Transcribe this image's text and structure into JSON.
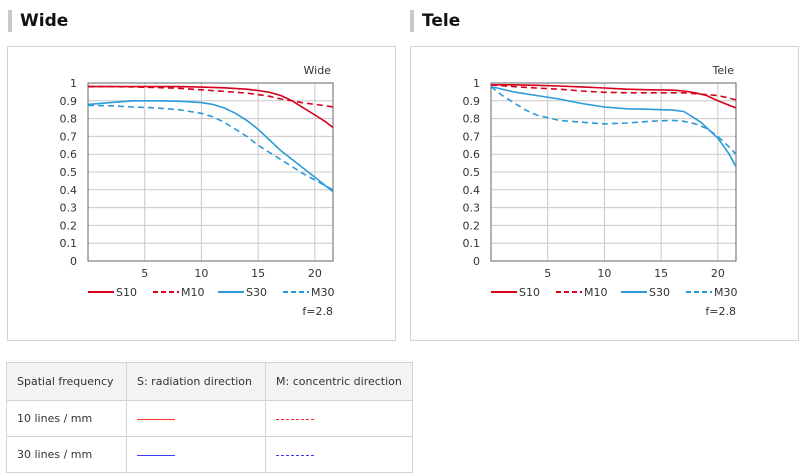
{
  "sections": [
    {
      "title": "Wide"
    },
    {
      "title": "Tele"
    }
  ],
  "colors": {
    "red": "#d7001a",
    "blue": "#2b9ad8",
    "grid": "#c8c8c8",
    "axis": "#666666"
  },
  "chart_data": [
    {
      "type": "line",
      "title": "Wide",
      "note": "f=2.8",
      "xlim": [
        0,
        21.6
      ],
      "ylim": [
        0,
        1
      ],
      "xticks": [
        "5",
        "10",
        "15",
        "20"
      ],
      "xtick_values": [
        5,
        10,
        15,
        20
      ],
      "yticks": [
        "0",
        "0.1",
        "0.2",
        "0.3",
        "0.4",
        "0.5",
        "0.6",
        "0.7",
        "0.8",
        "0.9",
        "1"
      ],
      "grid": true,
      "legend_position": "bottom",
      "series": [
        {
          "name": "S10",
          "color": "#d7001a",
          "dash": false,
          "x": [
            0,
            2,
            4,
            6,
            8,
            10,
            12,
            14,
            15,
            16,
            17,
            18,
            19,
            20,
            21,
            21.6
          ],
          "y": [
            0.98,
            0.98,
            0.98,
            0.98,
            0.98,
            0.977,
            0.973,
            0.965,
            0.958,
            0.948,
            0.93,
            0.9,
            0.86,
            0.82,
            0.78,
            0.75
          ]
        },
        {
          "name": "M10",
          "color": "#d7001a",
          "dash": true,
          "x": [
            0,
            2,
            4,
            6,
            8,
            10,
            12,
            14,
            15,
            16,
            17,
            18,
            19,
            20,
            21,
            21.6
          ],
          "y": [
            0.98,
            0.98,
            0.978,
            0.975,
            0.97,
            0.962,
            0.953,
            0.943,
            0.935,
            0.925,
            0.91,
            0.9,
            0.888,
            0.88,
            0.872,
            0.865
          ]
        },
        {
          "name": "S30",
          "color": "#2b9ad8",
          "dash": false,
          "x": [
            0,
            2,
            4,
            6,
            8,
            10,
            11,
            12,
            13,
            14,
            15,
            16,
            17,
            18,
            19,
            20,
            21,
            21.6
          ],
          "y": [
            0.88,
            0.89,
            0.9,
            0.9,
            0.898,
            0.89,
            0.88,
            0.86,
            0.83,
            0.79,
            0.74,
            0.68,
            0.62,
            0.57,
            0.52,
            0.47,
            0.42,
            0.39
          ]
        },
        {
          "name": "M30",
          "color": "#2b9ad8",
          "dash": true,
          "x": [
            0,
            2,
            4,
            6,
            8,
            10,
            11,
            12,
            13,
            14,
            15,
            16,
            17,
            18,
            19,
            20,
            21,
            21.6
          ],
          "y": [
            0.875,
            0.872,
            0.865,
            0.86,
            0.85,
            0.83,
            0.81,
            0.78,
            0.74,
            0.7,
            0.65,
            0.61,
            0.57,
            0.53,
            0.49,
            0.455,
            0.42,
            0.4
          ]
        }
      ]
    },
    {
      "type": "line",
      "title": "Tele",
      "note": "f=2.8",
      "xlim": [
        0,
        21.6
      ],
      "ylim": [
        0,
        1
      ],
      "xticks": [
        "5",
        "10",
        "15",
        "20"
      ],
      "xtick_values": [
        5,
        10,
        15,
        20
      ],
      "yticks": [
        "0",
        "0.1",
        "0.2",
        "0.3",
        "0.4",
        "0.5",
        "0.6",
        "0.7",
        "0.8",
        "0.9",
        "1"
      ],
      "grid": true,
      "legend_position": "bottom",
      "series": [
        {
          "name": "S10",
          "color": "#d7001a",
          "dash": false,
          "x": [
            0,
            2,
            4,
            6,
            8,
            10,
            12,
            14,
            16,
            17,
            18,
            19,
            20,
            21,
            21.6
          ],
          "y": [
            0.99,
            0.99,
            0.987,
            0.983,
            0.978,
            0.972,
            0.965,
            0.962,
            0.96,
            0.955,
            0.945,
            0.93,
            0.9,
            0.875,
            0.86
          ]
        },
        {
          "name": "M10",
          "color": "#d7001a",
          "dash": true,
          "x": [
            0,
            2,
            4,
            6,
            8,
            10,
            12,
            14,
            16,
            17,
            18,
            19,
            20,
            21,
            21.6
          ],
          "y": [
            0.99,
            0.98,
            0.972,
            0.965,
            0.955,
            0.948,
            0.945,
            0.945,
            0.945,
            0.945,
            0.94,
            0.935,
            0.93,
            0.915,
            0.905
          ]
        },
        {
          "name": "S30",
          "color": "#2b9ad8",
          "dash": false,
          "x": [
            0,
            2,
            4,
            6,
            8,
            10,
            12,
            14,
            15,
            16,
            17,
            17.5,
            18,
            18.5,
            19,
            20,
            21,
            21.6
          ],
          "y": [
            0.98,
            0.95,
            0.93,
            0.91,
            0.885,
            0.865,
            0.855,
            0.852,
            0.85,
            0.848,
            0.84,
            0.82,
            0.8,
            0.78,
            0.75,
            0.69,
            0.6,
            0.53
          ]
        },
        {
          "name": "M30",
          "color": "#2b9ad8",
          "dash": true,
          "x": [
            0,
            1,
            2,
            3,
            4,
            6,
            8,
            10,
            12,
            14,
            16,
            17,
            18,
            19,
            20,
            21,
            21.6
          ],
          "y": [
            0.98,
            0.93,
            0.89,
            0.85,
            0.82,
            0.79,
            0.78,
            0.77,
            0.775,
            0.785,
            0.79,
            0.785,
            0.77,
            0.745,
            0.7,
            0.64,
            0.6
          ]
        }
      ]
    }
  ],
  "table": {
    "headers": [
      "Spatial frequency",
      "S: radiation direction",
      "M: concentric direction"
    ],
    "rows": [
      {
        "label": "10 lines / mm",
        "s_color": "#ff2a2a",
        "m_color": "#ff2a2a"
      },
      {
        "label": "30 lines / mm",
        "s_color": "#3b3bf0",
        "m_color": "#3b3bf0"
      }
    ]
  }
}
